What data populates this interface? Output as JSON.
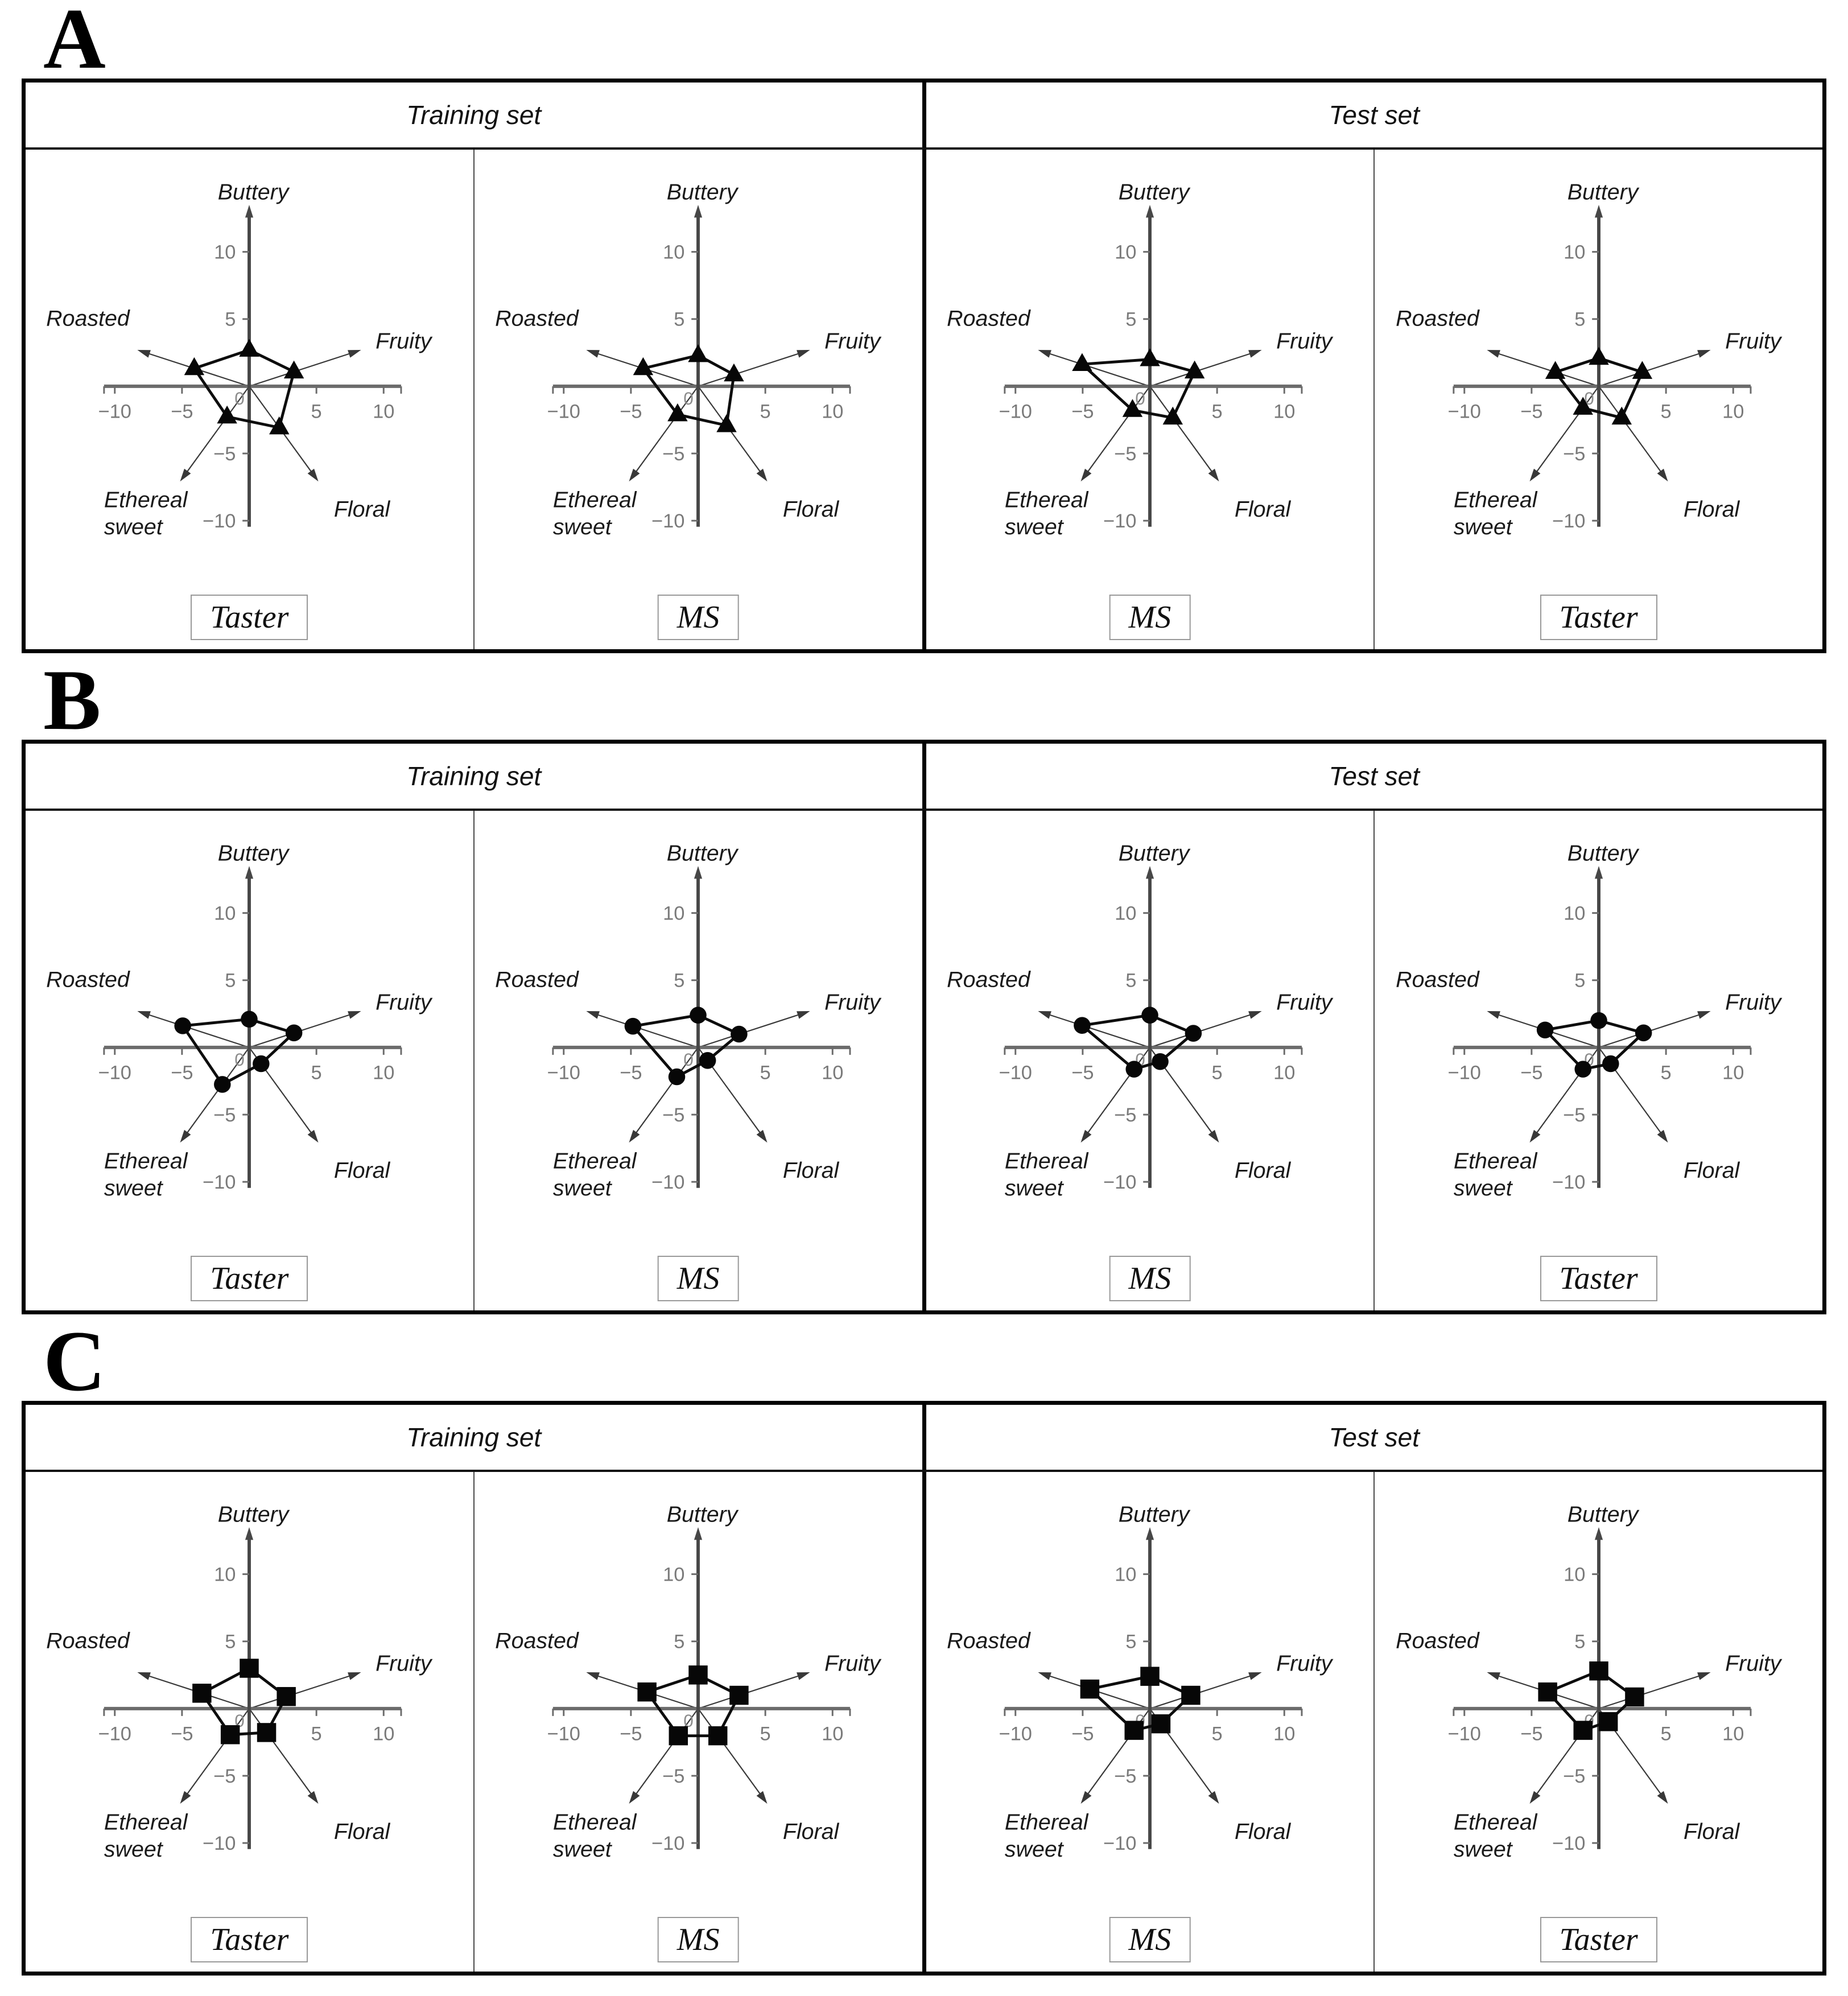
{
  "figure": {
    "panels": [
      {
        "letter": "A",
        "headers": [
          "Training set",
          "Test set"
        ]
      },
      {
        "letter": "B",
        "headers": [
          "Training set",
          "Test set"
        ]
      },
      {
        "letter": "C",
        "headers": [
          "Training set",
          "Test set"
        ]
      }
    ]
  },
  "axis": {
    "range": [
      -10,
      10
    ],
    "x_ticks": [
      -10,
      -5,
      5,
      10
    ],
    "y_ticks": [
      10,
      5,
      -5,
      -10
    ],
    "x_tick_labels": [
      "−10",
      "−5",
      "5",
      "10"
    ],
    "y_tick_labels": [
      "10",
      "5",
      "−5",
      "−10"
    ],
    "zero_label": "0",
    "categories": [
      "Buttery",
      "Fruity",
      "Floral",
      "Ethereal sweet",
      "Roasted"
    ],
    "angles_deg": [
      90,
      18,
      -54,
      -126,
      162
    ]
  },
  "chart_data": [
    {
      "type": "radar",
      "panel": "A",
      "set": "Training set",
      "label": "Taster",
      "marker": "triangle",
      "categories": [
        "Buttery",
        "Fruity",
        "Floral",
        "Ethereal sweet",
        "Roasted"
      ],
      "values": [
        2.7,
        3.5,
        3.8,
        2.8,
        4.3
      ],
      "axis_range": [
        -10,
        10
      ]
    },
    {
      "type": "radar",
      "panel": "A",
      "set": "Training set",
      "label": "MS",
      "marker": "triangle",
      "categories": [
        "Buttery",
        "Fruity",
        "Floral",
        "Ethereal sweet",
        "Roasted"
      ],
      "values": [
        2.3,
        2.8,
        3.6,
        2.6,
        4.3
      ],
      "axis_range": [
        -10,
        10
      ]
    },
    {
      "type": "radar",
      "panel": "A",
      "set": "Test set",
      "label": "MS",
      "marker": "triangle",
      "categories": [
        "Buttery",
        "Fruity",
        "Floral",
        "Ethereal sweet",
        "Roasted"
      ],
      "values": [
        2.0,
        3.5,
        2.9,
        2.2,
        5.3
      ],
      "axis_range": [
        -10,
        10
      ]
    },
    {
      "type": "radar",
      "panel": "A",
      "set": "Test set",
      "label": "Taster",
      "marker": "triangle",
      "categories": [
        "Buttery",
        "Fruity",
        "Floral",
        "Ethereal sweet",
        "Roasted"
      ],
      "values": [
        2.1,
        3.4,
        2.9,
        2.0,
        3.4
      ],
      "axis_range": [
        -10,
        10
      ]
    },
    {
      "type": "radar",
      "panel": "B",
      "set": "Training set",
      "label": "Taster",
      "marker": "circle",
      "categories": [
        "Buttery",
        "Fruity",
        "Floral",
        "Ethereal sweet",
        "Roasted"
      ],
      "values": [
        2.1,
        3.5,
        1.5,
        3.4,
        5.2
      ],
      "axis_range": [
        -10,
        10
      ]
    },
    {
      "type": "radar",
      "panel": "B",
      "set": "Training set",
      "label": "MS",
      "marker": "circle",
      "categories": [
        "Buttery",
        "Fruity",
        "Floral",
        "Ethereal sweet",
        "Roasted"
      ],
      "values": [
        2.4,
        3.2,
        1.2,
        2.7,
        5.1
      ],
      "axis_range": [
        -10,
        10
      ]
    },
    {
      "type": "radar",
      "panel": "B",
      "set": "Test set",
      "label": "MS",
      "marker": "circle",
      "categories": [
        "Buttery",
        "Fruity",
        "Floral",
        "Ethereal sweet",
        "Roasted"
      ],
      "values": [
        2.4,
        3.4,
        1.3,
        2.0,
        5.3
      ],
      "axis_range": [
        -10,
        10
      ]
    },
    {
      "type": "radar",
      "panel": "B",
      "set": "Test set",
      "label": "Taster",
      "marker": "circle",
      "categories": [
        "Buttery",
        "Fruity",
        "Floral",
        "Ethereal sweet",
        "Roasted"
      ],
      "values": [
        2.0,
        3.5,
        1.5,
        2.0,
        4.2
      ],
      "axis_range": [
        -10,
        10
      ]
    },
    {
      "type": "radar",
      "panel": "C",
      "set": "Training set",
      "label": "Taster",
      "marker": "square",
      "categories": [
        "Buttery",
        "Fruity",
        "Floral",
        "Ethereal sweet",
        "Roasted"
      ],
      "values": [
        3.0,
        2.9,
        2.2,
        2.4,
        3.7
      ],
      "axis_range": [
        -10,
        10
      ]
    },
    {
      "type": "radar",
      "panel": "C",
      "set": "Training set",
      "label": "MS",
      "marker": "square",
      "categories": [
        "Buttery",
        "Fruity",
        "Floral",
        "Ethereal sweet",
        "Roasted"
      ],
      "values": [
        2.5,
        3.2,
        2.5,
        2.5,
        4.0
      ],
      "axis_range": [
        -10,
        10
      ]
    },
    {
      "type": "radar",
      "panel": "C",
      "set": "Test set",
      "label": "MS",
      "marker": "square",
      "categories": [
        "Buttery",
        "Fruity",
        "Floral",
        "Ethereal sweet",
        "Roasted"
      ],
      "values": [
        2.4,
        3.2,
        1.4,
        2.0,
        4.7
      ],
      "axis_range": [
        -10,
        10
      ]
    },
    {
      "type": "radar",
      "panel": "C",
      "set": "Test set",
      "label": "Taster",
      "marker": "square",
      "categories": [
        "Buttery",
        "Fruity",
        "Floral",
        "Ethereal sweet",
        "Roasted"
      ],
      "values": [
        2.8,
        2.8,
        1.2,
        2.0,
        4.0
      ],
      "axis_range": [
        -10,
        10
      ]
    }
  ]
}
